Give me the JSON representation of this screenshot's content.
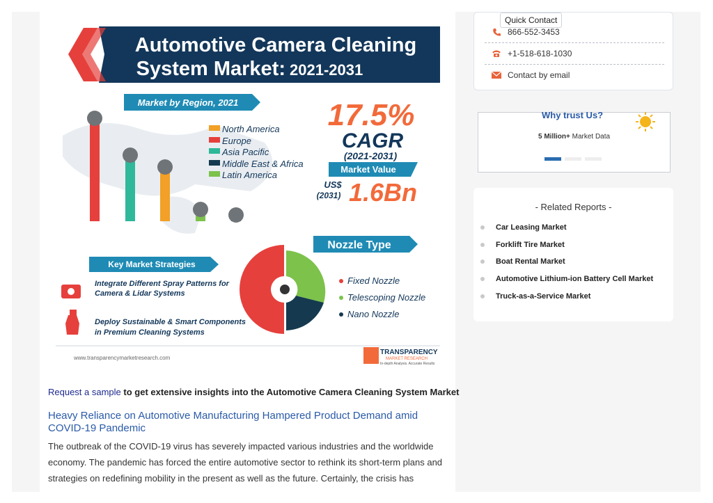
{
  "infographic": {
    "title_line1": "Automotive Camera Cleaning",
    "title_line2": "System Market:",
    "title_years": "2021-2031",
    "region_banner": "Market by Region, 2021",
    "legend": [
      "North America",
      "Europe",
      "Asia Pacific",
      "Middle East & Africa",
      "Latin America"
    ],
    "cagr_value": "17.5%",
    "cagr_label": "CAGR",
    "cagr_years": "(2021-2031)",
    "market_value_label": "Market Value",
    "us_label": "US$",
    "us_year": "(2031)",
    "market_value": "1.6Bn",
    "nozzle_banner": "Nozzle Type",
    "nozzle_legend": [
      "Fixed Nozzle",
      "Telescoping Nozzle",
      "Nano Nozzle"
    ],
    "strategies_banner": "Key Market Strategies",
    "strategy1_l1": "Integrate Different Spray Patterns for",
    "strategy1_l2": "Camera & Lidar Systems",
    "strategy2_l1": "Deploy Sustainable & Smart Components",
    "strategy2_l2": "in Premium Cleaning Systems",
    "footer_url": "www.transparencymarketresearch.com",
    "brand_name": "TRANSPARENCY",
    "brand_sub": "MARKET RESEARCH",
    "brand_tag": "In-depth Analysis. Accurate Results",
    "colors": {
      "navy": "#13375a",
      "red": "#e6403c",
      "orange": "#f2a027",
      "teal": "#2fb89a",
      "green": "#7cc24b",
      "dark": "#153a4f",
      "cyan": "#1f8bb5"
    }
  },
  "request": {
    "link": "Request a sample",
    "text": " to get extensive insights into the Automotive Camera Cleaning System Market"
  },
  "article": {
    "heading": "Heavy Reliance on Automotive Manufacturing Hampered Product Demand amid COVID-19 Pandemic",
    "paragraph": "The outbreak of the COVID-19 virus has severely impacted various industries and the worldwide economy. The pandemic has forced the entire automotive sector to rethink its short-term plans and strategies on redefining mobility in the present as well as the future. Certainly, the crisis has"
  },
  "contact": {
    "tooltip": "Quick Contact",
    "phone1": "866-552-3453",
    "phone2": "+1-518-618-1030",
    "email": "Contact by email",
    "icon_color": "#e8633a"
  },
  "trust": {
    "title": "Why trust Us?",
    "stat_bold": "5 Million+",
    "stat_text": " Market Data",
    "active_color": "#2a6db0"
  },
  "related": {
    "title": "- Related Reports -",
    "items": [
      "Car Leasing Market",
      "Forklift Tire Market",
      "Boat Rental Market",
      "Automotive Lithium-ion Battery Cell Market",
      "Truck-as-a-Service Market"
    ]
  }
}
